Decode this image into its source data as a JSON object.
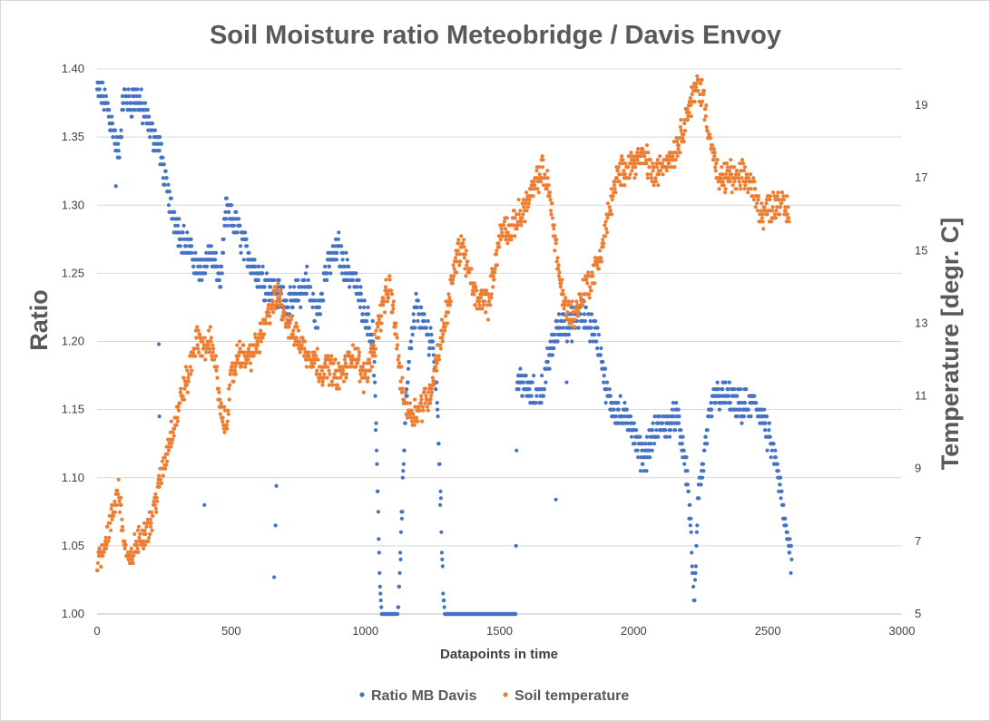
{
  "chart_data": {
    "type": "scatter",
    "title": "Soil Moisture ratio Meteobridge / Davis Envoy",
    "xlabel": "Datapoints in time",
    "ylabel": "Ratio",
    "y2label": "Temperature [degr. C]",
    "xlim": [
      0,
      3000
    ],
    "ylim": [
      1.0,
      1.4
    ],
    "y2lim": [
      5,
      20
    ],
    "x_ticks": [
      "0",
      "500",
      "1000",
      "1500",
      "2000",
      "2500",
      "3000"
    ],
    "y_ticks": [
      "1.00",
      "1.05",
      "1.10",
      "1.15",
      "1.20",
      "1.25",
      "1.30",
      "1.35",
      "1.40"
    ],
    "y2_ticks": [
      "5",
      "7",
      "9",
      "11",
      "13",
      "15",
      "17",
      "19"
    ],
    "grid": true,
    "legend_position": "bottom",
    "series": [
      {
        "name": "Ratio MB Davis",
        "axis": "left",
        "color": "#4472c4",
        "trend": [
          [
            0,
            1.385
          ],
          [
            40,
            1.372
          ],
          [
            60,
            1.355
          ],
          [
            80,
            1.335
          ],
          [
            100,
            1.382
          ],
          [
            120,
            1.375
          ],
          [
            150,
            1.378
          ],
          [
            180,
            1.365
          ],
          [
            200,
            1.355
          ],
          [
            230,
            1.345
          ],
          [
            260,
            1.31
          ],
          [
            280,
            1.295
          ],
          [
            300,
            1.285
          ],
          [
            330,
            1.272
          ],
          [
            350,
            1.265
          ],
          [
            380,
            1.25
          ],
          [
            420,
            1.265
          ],
          [
            440,
            1.255
          ],
          [
            460,
            1.245
          ],
          [
            480,
            1.295
          ],
          [
            520,
            1.285
          ],
          [
            550,
            1.27
          ],
          [
            580,
            1.258
          ],
          [
            600,
            1.25
          ],
          [
            640,
            1.24
          ],
          [
            680,
            1.235
          ],
          [
            700,
            1.23
          ],
          [
            720,
            1.225
          ],
          [
            750,
            1.235
          ],
          [
            780,
            1.245
          ],
          [
            800,
            1.23
          ],
          [
            820,
            1.215
          ],
          [
            850,
            1.25
          ],
          [
            880,
            1.262
          ],
          [
            900,
            1.268
          ],
          [
            920,
            1.255
          ],
          [
            950,
            1.248
          ],
          [
            970,
            1.24
          ],
          [
            990,
            1.225
          ],
          [
            1010,
            1.215
          ],
          [
            1030,
            1.2
          ],
          [
            1040,
            1.13
          ],
          [
            1050,
            1.05
          ],
          [
            1060,
            1.0
          ],
          [
            1100,
            1.0
          ],
          [
            1120,
            1.0
          ],
          [
            1130,
            1.04
          ],
          [
            1140,
            1.1
          ],
          [
            1150,
            1.15
          ],
          [
            1170,
            1.2
          ],
          [
            1190,
            1.225
          ],
          [
            1220,
            1.21
          ],
          [
            1250,
            1.2
          ],
          [
            1270,
            1.15
          ],
          [
            1285,
            1.05
          ],
          [
            1295,
            1.0
          ],
          [
            1560,
            1.0
          ],
          [
            1565,
            1.175
          ],
          [
            1600,
            1.165
          ],
          [
            1630,
            1.16
          ],
          [
            1660,
            1.165
          ],
          [
            1700,
            1.2
          ],
          [
            1730,
            1.215
          ],
          [
            1760,
            1.21
          ],
          [
            1800,
            1.22
          ],
          [
            1830,
            1.215
          ],
          [
            1860,
            1.205
          ],
          [
            1880,
            1.19
          ],
          [
            1900,
            1.16
          ],
          [
            1930,
            1.15
          ],
          [
            1960,
            1.145
          ],
          [
            1990,
            1.142
          ],
          [
            2010,
            1.125
          ],
          [
            2040,
            1.115
          ],
          [
            2070,
            1.13
          ],
          [
            2100,
            1.138
          ],
          [
            2130,
            1.14
          ],
          [
            2160,
            1.145
          ],
          [
            2180,
            1.125
          ],
          [
            2200,
            1.1
          ],
          [
            2215,
            1.055
          ],
          [
            2225,
            1.0
          ],
          [
            2240,
            1.09
          ],
          [
            2260,
            1.11
          ],
          [
            2280,
            1.14
          ],
          [
            2300,
            1.16
          ],
          [
            2330,
            1.16
          ],
          [
            2360,
            1.158
          ],
          [
            2390,
            1.15
          ],
          [
            2420,
            1.152
          ],
          [
            2450,
            1.155
          ],
          [
            2480,
            1.145
          ],
          [
            2500,
            1.13
          ],
          [
            2520,
            1.12
          ],
          [
            2540,
            1.1
          ],
          [
            2560,
            1.07
          ],
          [
            2580,
            1.05
          ],
          [
            2590,
            1.04
          ]
        ]
      },
      {
        "name": "Soil temperature",
        "axis": "right",
        "color": "#ed7d31",
        "trend": [
          [
            0,
            6.5
          ],
          [
            20,
            6.8
          ],
          [
            40,
            7.2
          ],
          [
            60,
            7.8
          ],
          [
            80,
            8.5
          ],
          [
            100,
            7.0
          ],
          [
            120,
            6.3
          ],
          [
            140,
            6.8
          ],
          [
            170,
            7.2
          ],
          [
            200,
            7.5
          ],
          [
            220,
            8.2
          ],
          [
            240,
            8.8
          ],
          [
            270,
            9.8
          ],
          [
            300,
            10.5
          ],
          [
            320,
            11.2
          ],
          [
            340,
            11.5
          ],
          [
            360,
            12.3
          ],
          [
            380,
            12.6
          ],
          [
            400,
            12.2
          ],
          [
            420,
            12.6
          ],
          [
            440,
            12.0
          ],
          [
            460,
            10.5
          ],
          [
            480,
            10.2
          ],
          [
            500,
            11.5
          ],
          [
            530,
            12.2
          ],
          [
            560,
            12.0
          ],
          [
            590,
            12.3
          ],
          [
            620,
            12.8
          ],
          [
            650,
            13.5
          ],
          [
            680,
            13.8
          ],
          [
            700,
            13.2
          ],
          [
            720,
            12.8
          ],
          [
            750,
            12.6
          ],
          [
            780,
            12.2
          ],
          [
            810,
            12.0
          ],
          [
            840,
            11.7
          ],
          [
            870,
            11.8
          ],
          [
            900,
            11.5
          ],
          [
            930,
            11.8
          ],
          [
            950,
            12.2
          ],
          [
            970,
            12.0
          ],
          [
            990,
            11.5
          ],
          [
            1010,
            11.8
          ],
          [
            1030,
            12.3
          ],
          [
            1050,
            13.0
          ],
          [
            1070,
            13.6
          ],
          [
            1090,
            14.0
          ],
          [
            1110,
            13.0
          ],
          [
            1130,
            11.5
          ],
          [
            1150,
            10.8
          ],
          [
            1170,
            10.5
          ],
          [
            1200,
            10.6
          ],
          [
            1220,
            10.9
          ],
          [
            1240,
            11.0
          ],
          [
            1260,
            11.8
          ],
          [
            1280,
            12.5
          ],
          [
            1300,
            13.2
          ],
          [
            1320,
            14.0
          ],
          [
            1340,
            14.8
          ],
          [
            1360,
            15.2
          ],
          [
            1380,
            14.5
          ],
          [
            1400,
            14.0
          ],
          [
            1420,
            13.5
          ],
          [
            1440,
            13.8
          ],
          [
            1460,
            13.5
          ],
          [
            1480,
            14.5
          ],
          [
            1500,
            15.3
          ],
          [
            1520,
            15.7
          ],
          [
            1540,
            15.5
          ],
          [
            1560,
            15.8
          ],
          [
            1580,
            16.0
          ],
          [
            1600,
            16.3
          ],
          [
            1620,
            16.6
          ],
          [
            1640,
            16.9
          ],
          [
            1660,
            17.2
          ],
          [
            1680,
            16.8
          ],
          [
            1700,
            15.8
          ],
          [
            1720,
            14.5
          ],
          [
            1740,
            13.5
          ],
          [
            1760,
            13.3
          ],
          [
            1780,
            13.2
          ],
          [
            1800,
            13.6
          ],
          [
            1820,
            14.0
          ],
          [
            1840,
            14.2
          ],
          [
            1860,
            14.5
          ],
          [
            1880,
            15.0
          ],
          [
            1900,
            15.8
          ],
          [
            1920,
            16.5
          ],
          [
            1940,
            17.0
          ],
          [
            1960,
            17.2
          ],
          [
            1980,
            17.4
          ],
          [
            2000,
            17.4
          ],
          [
            2020,
            17.5
          ],
          [
            2040,
            17.6
          ],
          [
            2060,
            17.3
          ],
          [
            2080,
            17.0
          ],
          [
            2100,
            17.3
          ],
          [
            2120,
            17.5
          ],
          [
            2140,
            17.6
          ],
          [
            2160,
            17.8
          ],
          [
            2180,
            18.3
          ],
          [
            2200,
            18.8
          ],
          [
            2220,
            19.2
          ],
          [
            2240,
            19.6
          ],
          [
            2260,
            19.2
          ],
          [
            2280,
            18.3
          ],
          [
            2300,
            17.5
          ],
          [
            2320,
            16.8
          ],
          [
            2340,
            17.0
          ],
          [
            2360,
            17.1
          ],
          [
            2380,
            16.9
          ],
          [
            2400,
            17.0
          ],
          [
            2420,
            17.0
          ],
          [
            2440,
            16.8
          ],
          [
            2460,
            16.3
          ],
          [
            2480,
            16.0
          ],
          [
            2500,
            16.2
          ],
          [
            2520,
            16.2
          ],
          [
            2540,
            16.4
          ],
          [
            2560,
            16.2
          ],
          [
            2580,
            16.0
          ]
        ]
      }
    ],
    "outliers": [
      {
        "series": 0,
        "x": 70,
        "y": 1.314
      },
      {
        "series": 0,
        "x": 230,
        "y": 1.198
      },
      {
        "series": 0,
        "x": 232,
        "y": 1.145
      },
      {
        "series": 0,
        "x": 400,
        "y": 1.08
      },
      {
        "series": 0,
        "x": 660,
        "y": 1.027
      },
      {
        "series": 0,
        "x": 665,
        "y": 1.065
      },
      {
        "series": 0,
        "x": 668,
        "y": 1.094
      },
      {
        "series": 0,
        "x": 1710,
        "y": 1.084
      },
      {
        "series": 0,
        "x": 1750,
        "y": 1.17
      }
    ]
  }
}
